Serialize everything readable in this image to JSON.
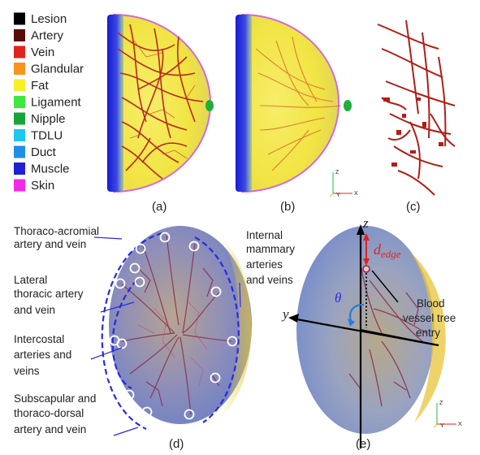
{
  "legend": [
    {
      "label": "Lesion",
      "color": "#000000"
    },
    {
      "label": "Artery",
      "color": "#5a0a0a"
    },
    {
      "label": "Vein",
      "color": "#e0231c"
    },
    {
      "label": "Glandular",
      "color": "#f7941d"
    },
    {
      "label": "Fat",
      "color": "#f8ef2a"
    },
    {
      "label": "Ligament",
      "color": "#3ee83c"
    },
    {
      "label": "Nipple",
      "color": "#18a537"
    },
    {
      "label": "TDLU",
      "color": "#1fc7f0"
    },
    {
      "label": "Duct",
      "color": "#1e8fe6"
    },
    {
      "label": "Muscle",
      "color": "#2020d8"
    },
    {
      "label": "Skin",
      "color": "#f22ae8"
    }
  ],
  "panels": {
    "a": "(a)",
    "b": "(b)",
    "c": "(c)",
    "d": "(d)",
    "e": "(e)"
  },
  "axes": {
    "z": "Z",
    "y": "Y",
    "x": "X"
  },
  "annotations_d": {
    "thoraco_acromial": [
      "Thoraco-acromial",
      "artery and vein"
    ],
    "lateral_thoracic": [
      "Lateral",
      "thoracic artery",
      "and vein"
    ],
    "intercostal": [
      "Intercostal",
      "arteries and",
      "veins"
    ],
    "subscapular": [
      "Subscapular and",
      "thoraco-dorsal",
      "artery and vein"
    ],
    "internal_mammary": [
      "Internal",
      "mammary",
      "arteries",
      "and veins"
    ]
  },
  "annotations_e": {
    "z_axis": "z",
    "y_axis": "y",
    "theta": "θ",
    "d_edge_main": "d",
    "d_edge_sub": "edge",
    "entry": [
      "Blood",
      "vessel tree",
      "entry"
    ]
  }
}
